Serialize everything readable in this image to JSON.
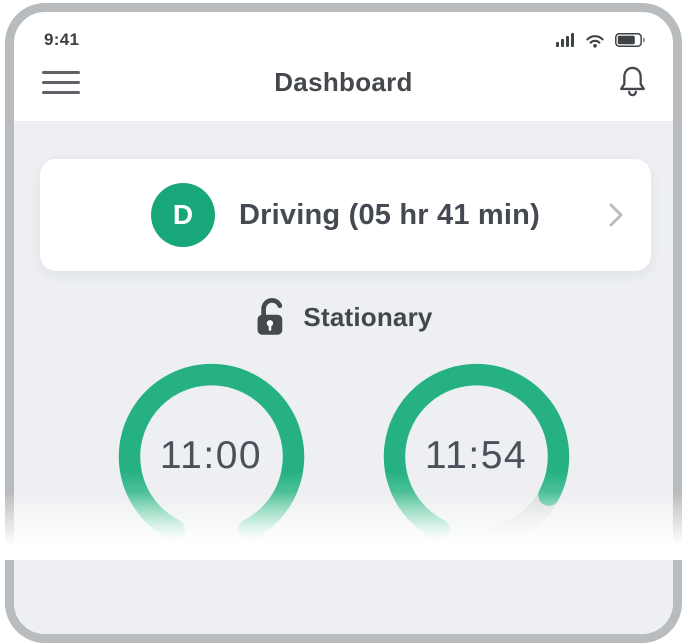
{
  "phone": {
    "status_bar": {
      "time": "9:41",
      "icons": [
        "cellular-signal-icon",
        "wifi-icon",
        "battery-icon"
      ]
    },
    "header": {
      "title": "Dashboard",
      "menu_icon": "hamburger-menu-icon",
      "notification_icon": "bell-icon"
    }
  },
  "dashboard": {
    "driving_card": {
      "badge_letter": "D",
      "label": "Driving (05 hr 41 min)",
      "chevron_icon": "chevron-right-icon"
    },
    "vehicle_status": {
      "icon": "unlock-icon",
      "label": "Stationary"
    },
    "gauges": [
      {
        "time": "11:00",
        "arc": {
          "start_deg": 207,
          "end_deg": 153
        },
        "track": null
      },
      {
        "time": "11:54",
        "arc": {
          "start_deg": 207,
          "end_deg": 118
        },
        "track": {
          "start_deg": 118,
          "end_deg": 170
        }
      }
    ]
  },
  "colors": {
    "accent_green": "#17a77b",
    "ring_green": "#25b182",
    "ring_track_gray": "#d4d7da",
    "text_dark": "#454a52",
    "background_gray": "#edeff2",
    "frame_border": "#b9bcbe"
  }
}
